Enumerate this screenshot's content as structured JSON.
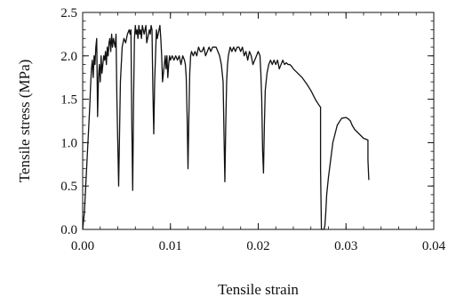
{
  "chart_data": {
    "type": "line",
    "title": "",
    "xlabel": "Tensile strain",
    "ylabel": "Tensile stress (MPa)",
    "xlim": [
      0,
      0.04
    ],
    "ylim": [
      0,
      2.5
    ],
    "xticks": [
      0.0,
      0.01,
      0.02,
      0.03,
      0.04
    ],
    "xtick_labels": [
      "0.00",
      "0.01",
      "0.02",
      "0.03",
      "0.04"
    ],
    "yticks": [
      0.0,
      0.5,
      1.0,
      1.5,
      2.0,
      2.5
    ],
    "ytick_labels": [
      "0.0",
      "0.5",
      "1.0",
      "1.5",
      "2.0",
      "2.5"
    ],
    "grid": false,
    "legend": "none",
    "line_color": "#111111",
    "series": [
      {
        "x": [
          0.0,
          0.0002,
          0.0004,
          0.0006,
          0.0008,
          0.0009,
          0.001,
          0.0011,
          0.0012,
          0.0013,
          0.0014,
          0.0015,
          0.0016,
          0.0017,
          0.0018,
          0.0019,
          0.002,
          0.0021,
          0.0022,
          0.0023,
          0.0024,
          0.0025,
          0.0026,
          0.0027,
          0.0028,
          0.0029,
          0.003,
          0.0031,
          0.0032,
          0.0033,
          0.0034,
          0.0035,
          0.0036,
          0.0037,
          0.0038,
          0.0039,
          0.004,
          0.0041,
          0.0043,
          0.0045,
          0.0047,
          0.0049,
          0.0051,
          0.0053,
          0.0054,
          0.0055,
          0.0056,
          0.0057,
          0.0058,
          0.0059,
          0.006,
          0.0061,
          0.0062,
          0.0063,
          0.0064,
          0.0065,
          0.0066,
          0.0067,
          0.0068,
          0.0069,
          0.007,
          0.0071,
          0.0072,
          0.0073,
          0.0074,
          0.0075,
          0.0076,
          0.0077,
          0.0078,
          0.0079,
          0.008,
          0.0081,
          0.0082,
          0.0083,
          0.0084,
          0.0085,
          0.0086,
          0.0087,
          0.0088,
          0.0089,
          0.009,
          0.0091,
          0.0092,
          0.0093,
          0.0094,
          0.0095,
          0.0096,
          0.0097,
          0.0098,
          0.0099,
          0.01,
          0.0102,
          0.0104,
          0.0106,
          0.0108,
          0.011,
          0.0112,
          0.0114,
          0.0116,
          0.0117,
          0.0118,
          0.0119,
          0.012,
          0.0121,
          0.0122,
          0.0123,
          0.0124,
          0.0126,
          0.0128,
          0.013,
          0.0132,
          0.0134,
          0.0136,
          0.0138,
          0.014,
          0.0142,
          0.0144,
          0.0146,
          0.0148,
          0.015,
          0.0152,
          0.0154,
          0.0156,
          0.0158,
          0.016,
          0.0161,
          0.0162,
          0.0163,
          0.0164,
          0.0165,
          0.0166,
          0.0168,
          0.017,
          0.0172,
          0.0174,
          0.0176,
          0.0178,
          0.018,
          0.0182,
          0.0184,
          0.0186,
          0.0188,
          0.019,
          0.0192,
          0.0194,
          0.0196,
          0.0198,
          0.02,
          0.0202,
          0.0203,
          0.0204,
          0.0205,
          0.0206,
          0.0207,
          0.0208,
          0.021,
          0.0212,
          0.0214,
          0.0216,
          0.0218,
          0.022,
          0.0222,
          0.0224,
          0.0226,
          0.0228,
          0.023,
          0.0232,
          0.0234,
          0.0236,
          0.0238,
          0.024,
          0.0245,
          0.025,
          0.0255,
          0.026,
          0.0265,
          0.027,
          0.0271,
          0.0271,
          0.0272,
          0.0272,
          0.0273,
          0.0274,
          0.0275,
          0.0276,
          0.0277,
          0.0278,
          0.028,
          0.0285,
          0.029,
          0.0295,
          0.03,
          0.0303,
          0.0305,
          0.0307,
          0.031,
          0.0315,
          0.032,
          0.0325,
          0.0325,
          0.0326
        ],
        "y": [
          0.0,
          0.2,
          0.6,
          1.0,
          1.4,
          1.65,
          1.85,
          1.95,
          1.75,
          2.0,
          1.9,
          2.1,
          2.2,
          1.3,
          1.75,
          1.9,
          1.7,
          2.0,
          1.8,
          1.9,
          2.0,
          1.95,
          2.05,
          1.9,
          2.1,
          2.0,
          2.15,
          2.2,
          2.05,
          2.25,
          2.1,
          2.2,
          2.15,
          2.1,
          2.25,
          1.5,
          1.0,
          0.5,
          1.7,
          2.1,
          2.2,
          2.15,
          2.25,
          2.3,
          2.25,
          2.3,
          1.2,
          0.45,
          1.5,
          2.2,
          2.35,
          2.25,
          2.3,
          2.2,
          2.35,
          2.25,
          2.3,
          2.2,
          2.35,
          2.3,
          2.25,
          2.3,
          2.35,
          2.15,
          2.2,
          2.25,
          2.3,
          2.25,
          2.35,
          2.3,
          1.6,
          1.1,
          1.7,
          2.0,
          2.3,
          2.2,
          2.25,
          2.3,
          2.35,
          2.2,
          2.0,
          1.7,
          1.8,
          1.9,
          2.0,
          1.85,
          2.0,
          1.75,
          1.9,
          2.0,
          1.95,
          2.0,
          1.95,
          2.0,
          1.95,
          2.0,
          1.9,
          2.0,
          1.95,
          1.9,
          1.75,
          1.3,
          0.7,
          1.3,
          1.8,
          2.0,
          2.05,
          2.0,
          2.05,
          2.0,
          2.1,
          2.05,
          2.05,
          2.1,
          2.0,
          2.05,
          2.1,
          2.05,
          2.1,
          2.1,
          2.1,
          2.05,
          2.0,
          1.9,
          1.7,
          1.1,
          0.55,
          1.2,
          1.7,
          1.9,
          2.0,
          2.1,
          2.05,
          2.1,
          2.05,
          2.1,
          2.1,
          2.05,
          2.1,
          2.0,
          2.05,
          1.95,
          2.05,
          2.0,
          1.9,
          1.95,
          2.0,
          2.05,
          2.0,
          1.8,
          1.5,
          0.9,
          0.65,
          1.2,
          1.6,
          1.8,
          1.9,
          1.95,
          1.9,
          1.95,
          1.9,
          1.95,
          1.85,
          1.9,
          1.95,
          1.9,
          1.92,
          1.9,
          1.9,
          1.88,
          1.85,
          1.8,
          1.75,
          1.68,
          1.6,
          1.5,
          1.42,
          1.41,
          0.7,
          0.0,
          0.0,
          0.0,
          0.0,
          0.0,
          0.05,
          0.2,
          0.4,
          0.6,
          1.0,
          1.2,
          1.28,
          1.29,
          1.27,
          1.25,
          1.2,
          1.15,
          1.1,
          1.05,
          1.03,
          0.8,
          0.57
        ]
      }
    ]
  }
}
